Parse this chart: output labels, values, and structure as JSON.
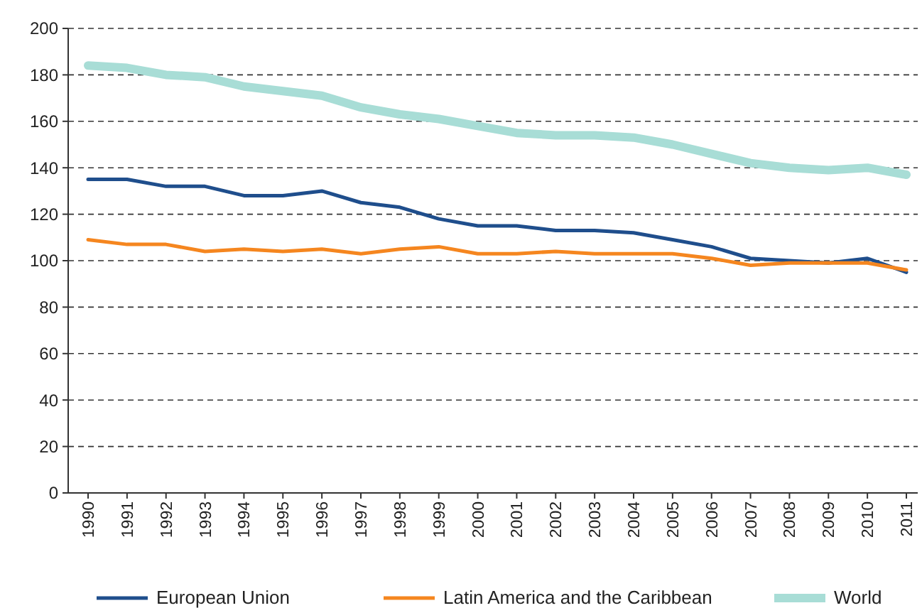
{
  "chart_data": {
    "type": "line",
    "categories": [
      "1990",
      "1991",
      "1992",
      "1993",
      "1994",
      "1995",
      "1996",
      "1997",
      "1998",
      "1999",
      "2000",
      "2001",
      "2002",
      "2003",
      "2004",
      "2005",
      "2006",
      "2007",
      "2008",
      "2009",
      "2010",
      "2011"
    ],
    "series": [
      {
        "name": "European Union",
        "color": "#1f4e8c",
        "values": [
          135,
          135,
          132,
          132,
          128,
          128,
          130,
          125,
          123,
          118,
          115,
          115,
          113,
          113,
          112,
          109,
          106,
          101,
          100,
          99,
          101,
          95
        ]
      },
      {
        "name": "Latin America and the Caribbean",
        "color": "#f5861f",
        "values": [
          109,
          107,
          107,
          104,
          105,
          104,
          105,
          103,
          105,
          106,
          103,
          103,
          104,
          103,
          103,
          103,
          101,
          98,
          99,
          99,
          99,
          96
        ]
      },
      {
        "name": "World",
        "color": "#a8ddd6",
        "values": [
          184,
          183,
          180,
          179,
          175,
          173,
          171,
          166,
          163,
          161,
          158,
          155,
          154,
          154,
          153,
          150,
          146,
          142,
          140,
          139,
          140,
          137
        ]
      }
    ],
    "ylim": [
      0,
      200
    ],
    "yticks": [
      0,
      20,
      40,
      60,
      80,
      100,
      120,
      140,
      160,
      180,
      200
    ],
    "grid": "y",
    "legend": "bottom",
    "line_style": "solid"
  }
}
